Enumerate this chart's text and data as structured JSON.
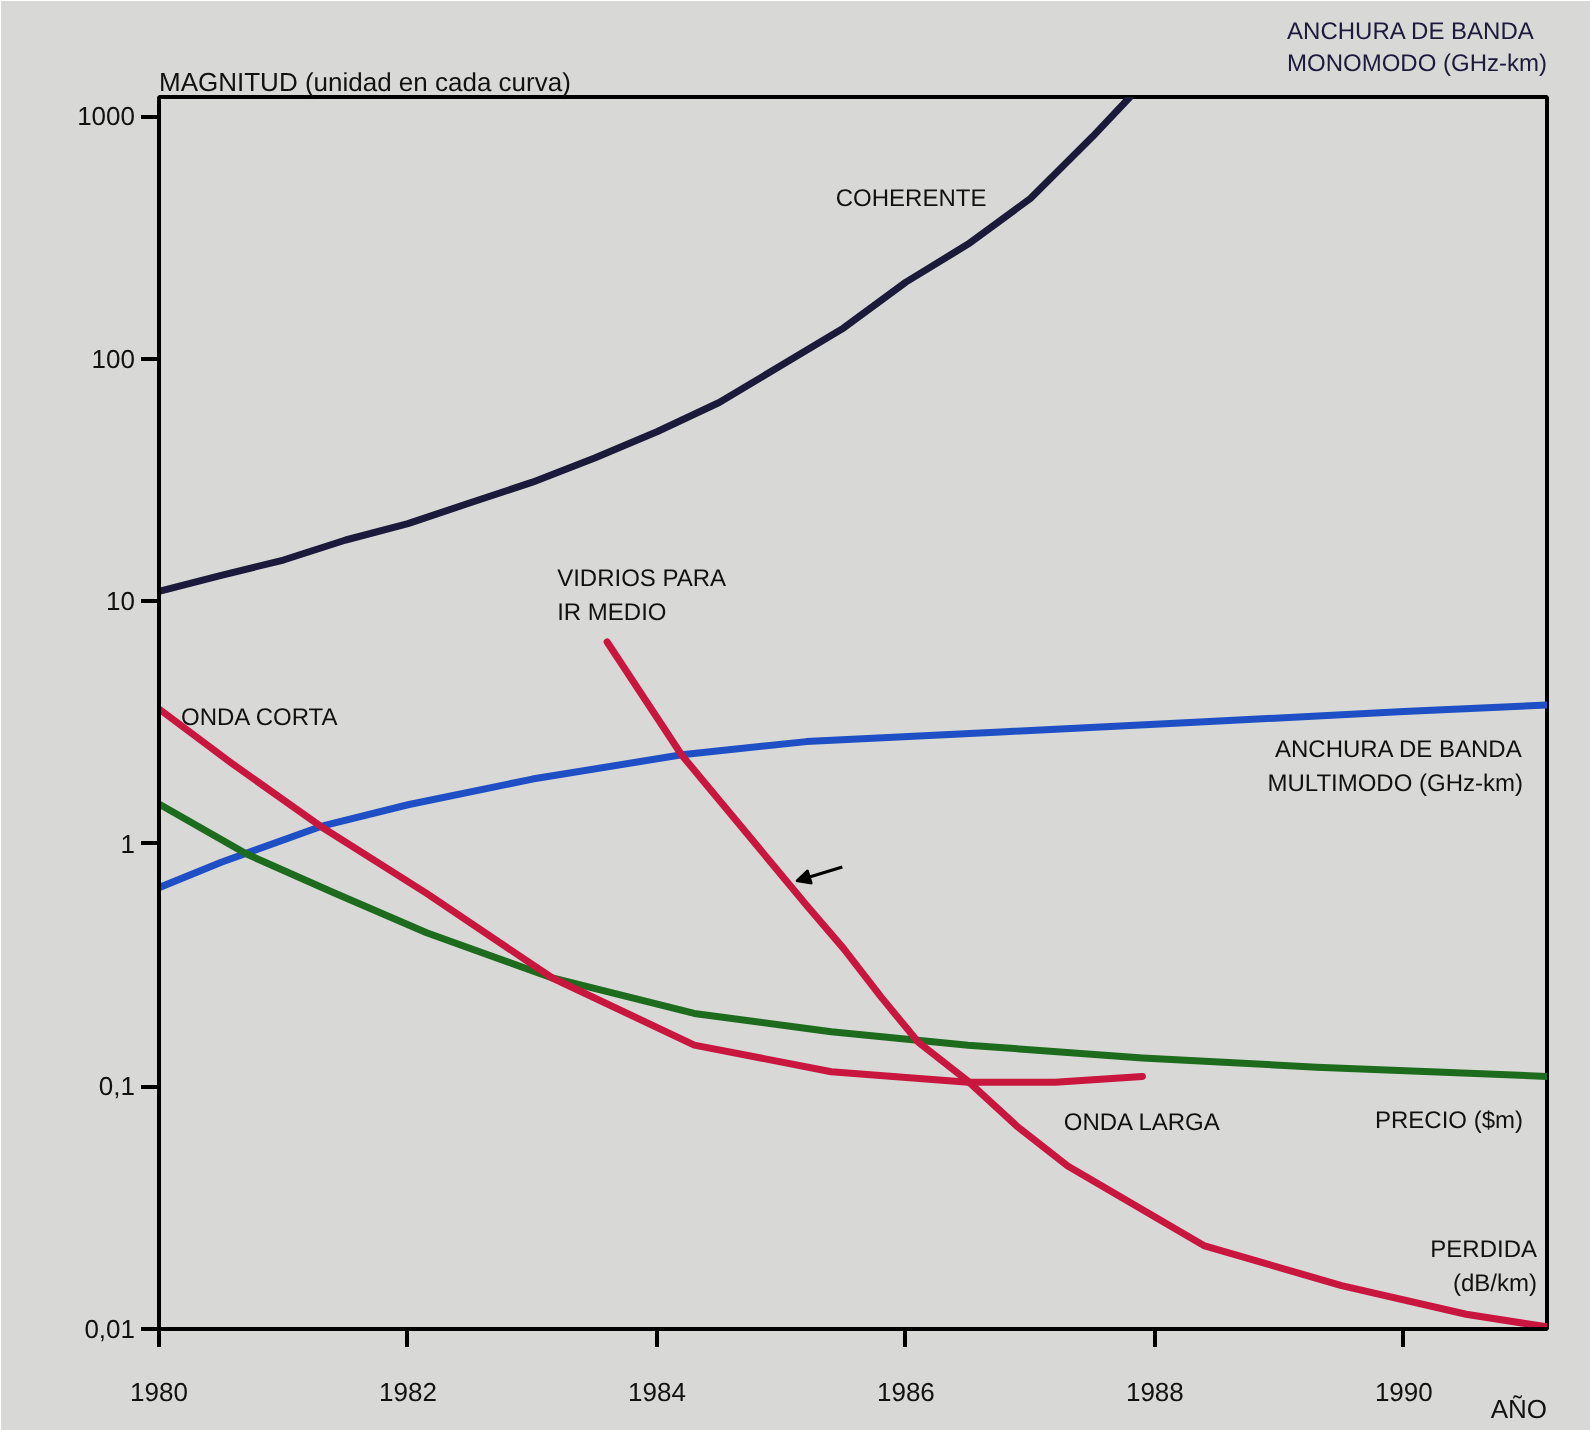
{
  "chart_data": {
    "type": "line",
    "ylabel": "MAGNITUD (unidad en cada curva)",
    "xlabel": "AÑO",
    "log": "y",
    "grid": false,
    "line_style": "solid",
    "xlim": [
      1980,
      1991.15
    ],
    "ylim": [
      0.01,
      1200
    ],
    "xticks": [
      1980,
      1982,
      1984,
      1986,
      1988,
      1990
    ],
    "yticks": [
      {
        "value": 0.01,
        "label": "0,01"
      },
      {
        "value": 0.1,
        "label": "0,1"
      },
      1,
      10,
      100,
      1000
    ],
    "annotations": [
      {
        "text": "COHERENTE",
        "x": 1987,
        "y": 458
      },
      {
        "text": "VIDRIOS PARA\nIR MEDIO",
        "x": 1983.6,
        "y": 6.8
      },
      {
        "text": "ONDA CORTA",
        "x": 1980,
        "y": 3.6
      },
      {
        "text": "ONDA LARGA",
        "x": 1987.9,
        "y": 0.11
      }
    ],
    "series": [
      {
        "name": "ANCHURA DE BANDA\nMONOMODO (GHz-km)",
        "color": "#1b1a3a",
        "x": [
          1980,
          1980.5,
          1981,
          1981.5,
          1982,
          1982.5,
          1983,
          1983.5,
          1984,
          1984.5,
          1985,
          1985.5,
          1986,
          1986.5,
          1987,
          1987.5,
          1987.8
        ],
        "values": [
          11,
          12.8,
          14.8,
          17.9,
          20.9,
          25.5,
          31,
          39,
          50,
          66,
          94,
          134,
          207,
          297,
          458,
          824,
          1200
        ]
      },
      {
        "name": "ANCHURA DE BANDA\nMULTIMODO (GHz-km)",
        "color": "#1f4fc4",
        "x": [
          1980,
          1980.5,
          1981.3,
          1982,
          1983,
          1984.2,
          1985.2,
          1986.8,
          1988.4,
          1990,
          1991.15
        ],
        "values": [
          0.66,
          0.84,
          1.18,
          1.45,
          1.85,
          2.33,
          2.64,
          2.9,
          3.19,
          3.51,
          3.74
        ]
      },
      {
        "name": "PRECIO ($m)",
        "color": "#1d6b1d",
        "x": [
          1980,
          1980.7,
          1981.4,
          1982.15,
          1983.16,
          1984.3,
          1985.4,
          1986.5,
          1987.9,
          1989.3,
          1991.15
        ],
        "values": [
          1.46,
          0.91,
          0.63,
          0.43,
          0.28,
          0.2,
          0.168,
          0.148,
          0.131,
          0.12,
          0.11
        ]
      },
      {
        "color": "#c8163e",
        "x": [
          1980,
          1980.6,
          1981.3,
          1982.15,
          1983.16,
          1984.3,
          1985.4,
          1986.5,
          1987.2,
          1987.9
        ],
        "values": [
          3.6,
          2.12,
          1.18,
          0.625,
          0.28,
          0.148,
          0.115,
          0.104,
          0.104,
          0.11
        ]
      },
      {
        "name": "PERDIDA\n(dB/km)",
        "color": "#c8163e",
        "x": [
          1983.6,
          1984.2,
          1985.2,
          1985.5,
          1985.8,
          1986.1,
          1986.5,
          1986.9,
          1987.3,
          1988.4,
          1989.5,
          1990.5,
          1991.15
        ],
        "values": [
          6.8,
          2.32,
          0.56,
          0.37,
          0.234,
          0.152,
          0.105,
          0.068,
          0.047,
          0.022,
          0.0151,
          0.0115,
          0.0102
        ]
      }
    ]
  }
}
